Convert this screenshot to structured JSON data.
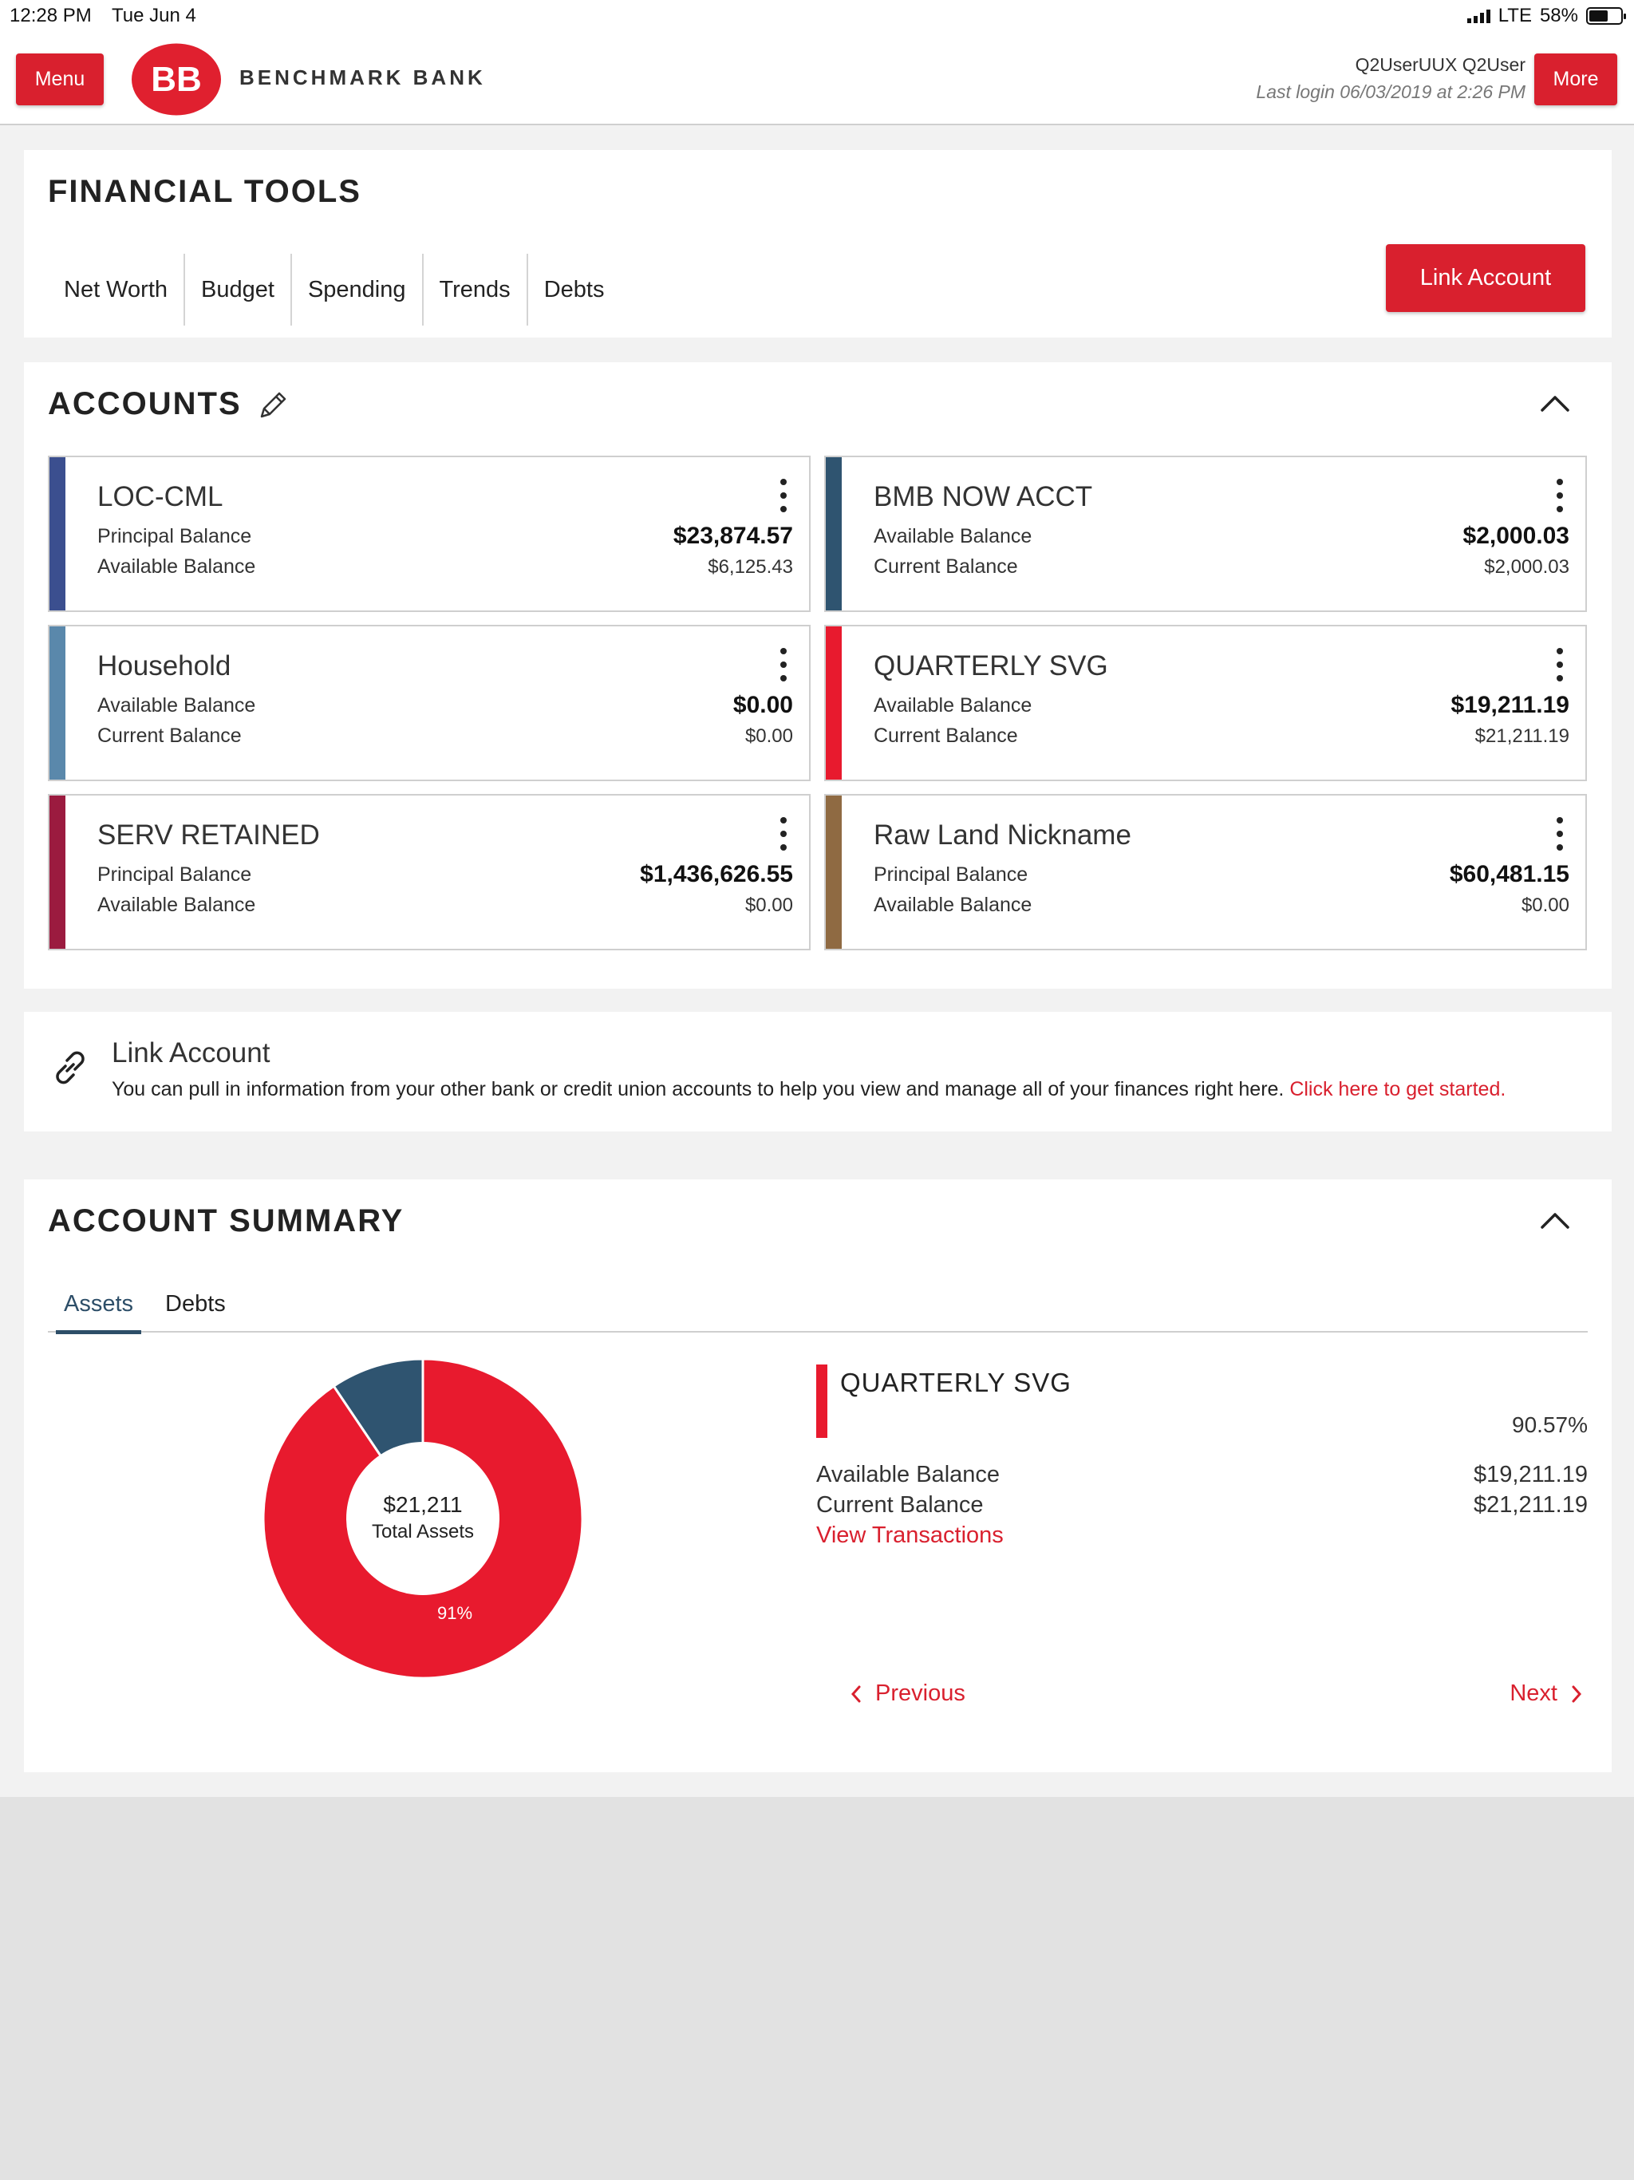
{
  "status_bar": {
    "time": "12:28 PM",
    "date": "Tue Jun 4",
    "network": "LTE",
    "battery": "58%"
  },
  "header": {
    "menu_label": "Menu",
    "bank_name": "BENCHMARK BANK",
    "user_name": "Q2UserUUX Q2User",
    "last_login": "Last login 06/03/2019 at 2:26 PM",
    "more_label": "More"
  },
  "financial_tools": {
    "title": "FINANCIAL TOOLS",
    "tabs": [
      "Net Worth",
      "Budget",
      "Spending",
      "Trends",
      "Debts"
    ],
    "link_account_label": "Link Account"
  },
  "accounts": {
    "title": "ACCOUNTS",
    "items": [
      {
        "name": "LOC-CML",
        "label1": "Principal Balance",
        "value1": "$23,874.57",
        "label2": "Available Balance",
        "value2": "$6,125.43",
        "color": "#3b4f8f"
      },
      {
        "name": "BMB NOW ACCT",
        "label1": "Available Balance",
        "value1": "$2,000.03",
        "label2": "Current Balance",
        "value2": "$2,000.03",
        "color": "#2f5470"
      },
      {
        "name": "Household",
        "label1": "Available Balance",
        "value1": "$0.00",
        "label2": "Current Balance",
        "value2": "$0.00",
        "color": "#5a88ab"
      },
      {
        "name": "QUARTERLY SVG",
        "label1": "Available Balance",
        "value1": "$19,211.19",
        "label2": "Current Balance",
        "value2": "$21,211.19",
        "color": "#e81a2e"
      },
      {
        "name": "SERV RETAINED",
        "label1": "Principal Balance",
        "value1": "$1,436,626.55",
        "label2": "Available Balance",
        "value2": "$0.00",
        "color": "#9b1b3f"
      },
      {
        "name": "Raw Land Nickname",
        "label1": "Principal Balance",
        "value1": "$60,481.15",
        "label2": "Available Balance",
        "value2": "$0.00",
        "color": "#8f6a42"
      }
    ]
  },
  "link_banner": {
    "title": "Link Account",
    "description": "You can pull in information from your other bank or credit union accounts to help you view and manage all of your finances right here.",
    "cta": "Click here to get started."
  },
  "account_summary": {
    "title": "ACCOUNT SUMMARY",
    "tabs": [
      "Assets",
      "Debts"
    ],
    "active_tab": "Assets",
    "total_value": "$21,211",
    "total_label": "Total Assets",
    "slice_label": "91%",
    "chart_data": {
      "type": "pie",
      "categories": [
        "QUARTERLY SVG",
        "BMB NOW ACCT"
      ],
      "values": [
        90.57,
        9.43
      ],
      "colors": [
        "#e81a2e",
        "#2f5470"
      ]
    },
    "selected": {
      "name": "QUARTERLY SVG",
      "percent": "90.57%",
      "label1": "Available Balance",
      "value1": "$19,211.19",
      "label2": "Current Balance",
      "value2": "$21,211.19",
      "link": "View Transactions"
    },
    "previous_label": "Previous",
    "next_label": "Next"
  },
  "colors": {
    "accent": "#d9202e",
    "tab_active": "#2d4e68"
  }
}
